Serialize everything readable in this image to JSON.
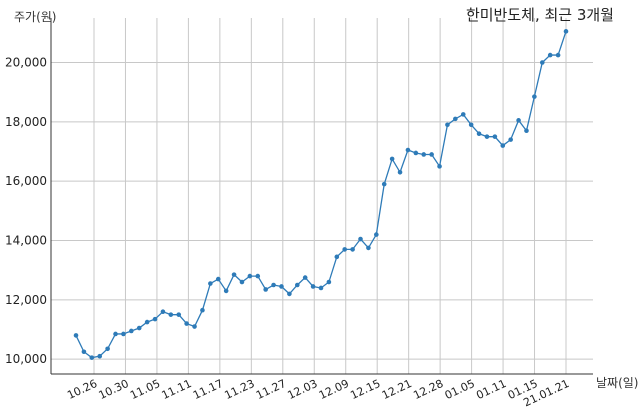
{
  "chart_data": {
    "type": "line",
    "title": "한미반도체, 최근 3개월",
    "ylabel": "주가(원)",
    "xlabel": "날짜(일)",
    "ylim": [
      9500,
      21500
    ],
    "yticks": [
      10000,
      12000,
      14000,
      16000,
      18000,
      20000
    ],
    "ytick_labels": [
      "10,000",
      "12,000",
      "14,000",
      "16,000",
      "18,000",
      "20,000"
    ],
    "xtick_labels": [
      "10.26",
      "10.30",
      "11.05",
      "11.11",
      "11.17",
      "11.23",
      "11.27",
      "12.03",
      "12.09",
      "12.15",
      "12.21",
      "12.28",
      "01.05",
      "01.11",
      "01.15",
      "21.01.21"
    ],
    "grid": true,
    "series_color": "#2e7bb8",
    "values": [
      10800,
      10250,
      10050,
      10100,
      10350,
      10850,
      10850,
      10950,
      11050,
      11250,
      11350,
      11600,
      11500,
      11500,
      11200,
      11100,
      11650,
      12550,
      12700,
      12300,
      12850,
      12600,
      12800,
      12800,
      12350,
      12500,
      12450,
      12200,
      12500,
      12750,
      12450,
      12400,
      12600,
      13450,
      13700,
      13700,
      14050,
      13750,
      14200,
      15900,
      16750,
      16300,
      17050,
      16950,
      16900,
      16900,
      16500,
      17900,
      18100,
      18250,
      17900,
      17600,
      17500,
      17500,
      17200,
      17400,
      18050,
      17700,
      18850,
      20000,
      20250,
      20250,
      21050
    ]
  }
}
